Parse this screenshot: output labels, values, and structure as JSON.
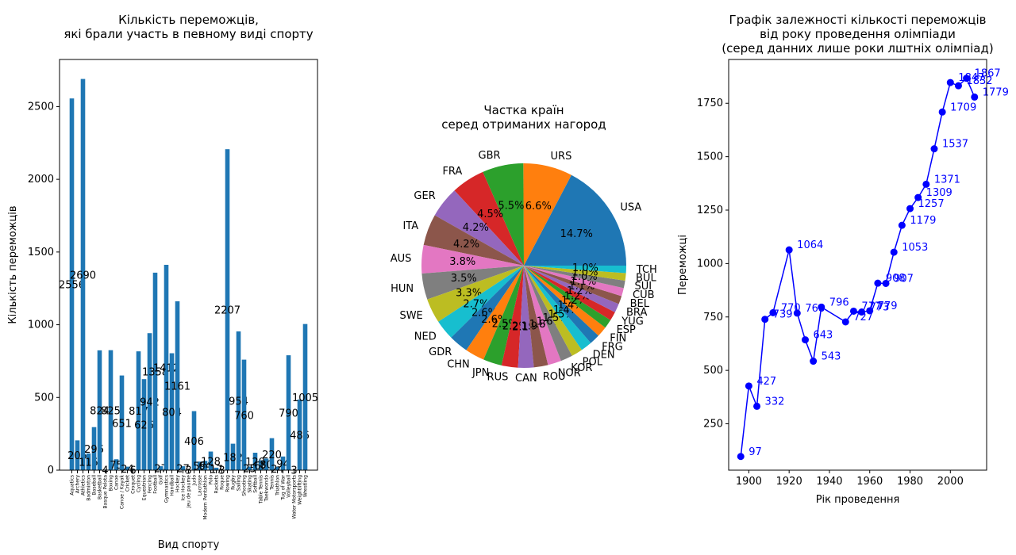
{
  "chart_data": [
    {
      "type": "bar",
      "title": "Кількість переможців,\nякі брали участь в певному виді спорту",
      "x_label": "Вид спорту",
      "y_label": "Кількість переможців",
      "color": "#1f77b4",
      "categories": [
        "Aquatics",
        "Archery",
        "Athletics",
        "Badminton",
        "Baseball",
        "Basketball",
        "Basque Pelota",
        "Boxing",
        "Canoe",
        "Canoe / Kayak",
        "Cricket",
        "Croquet",
        "Cycling",
        "Equestrian",
        "Fencing",
        "Football",
        "Golf",
        "Gymnastics",
        "Handball",
        "Hockey",
        "Ice Hockey",
        "Jeu de paume",
        "Judo",
        "Lacrosse",
        "Modern Pentathlon",
        "Polo",
        "Rackets",
        "Roque",
        "Rowing",
        "Rugby",
        "Sailing",
        "Shooting",
        "Skating",
        "Softball",
        "Table Tennis",
        "Taekwondo",
        "Tennis",
        "Triathlon",
        "Tug of War",
        "Volleyball",
        "Water Motorsports",
        "Weightlifting",
        "Wrestling"
      ],
      "values": [
        2556,
        205,
        2690,
        115,
        296,
        824,
        4,
        825,
        75,
        651,
        24,
        6,
        817,
        626,
        942,
        1358,
        27,
        1412,
        804,
        1161,
        27,
        3,
        406,
        59,
        64,
        128,
        17,
        3,
        2207,
        182,
        954,
        760,
        25,
        120,
        68,
        80,
        220,
        24,
        94,
        790,
        3,
        486,
        1005
      ],
      "ylim": [
        0,
        2824
      ],
      "yticks": [
        0,
        500,
        1000,
        1500,
        2000,
        2500
      ]
    },
    {
      "type": "pie",
      "title": "Частка країн\nсеред отриманих нагород",
      "colors": [
        "#1f77b4",
        "#ff7f0e",
        "#2ca02c",
        "#d62728",
        "#9467bd",
        "#8c564b",
        "#e377c2",
        "#7f7f7f",
        "#bcbd22",
        "#17becf"
      ],
      "categories": [
        "USA",
        "URS",
        "GBR",
        "FRA",
        "GER",
        "ITA",
        "AUS",
        "HUN",
        "SWE",
        "NED",
        "GDR",
        "CHN",
        "JPN",
        "RUS",
        "CAN",
        "ROU",
        "NOR",
        "KOR",
        "POL",
        "DEN",
        "FRG",
        "FIN",
        "ESP",
        "YUG",
        "BRA",
        "BEL",
        "CUB",
        "SUI",
        "BUL",
        "TCH"
      ],
      "values": [
        14.7,
        6.6,
        5.5,
        4.5,
        4.2,
        4.2,
        3.8,
        3.5,
        3.3,
        2.7,
        2.6,
        2.6,
        2.5,
        2.2,
        2.1,
        1.9,
        1.8,
        1.6,
        1.5,
        1.5,
        1.4,
        1.4,
        1.2,
        1.2,
        1.2,
        1.1,
        1.1,
        1.0,
        1.0,
        1.0
      ],
      "value_labels": [
        "14.7%",
        "6.6%",
        "5.5%",
        "4.5%",
        "4.2%",
        "4.2%",
        "3.8%",
        "3.5%",
        "3.3%",
        "2.7%",
        "2.6%",
        "2.6%",
        "2.5%",
        "2.2%",
        "2.1%",
        "1.9%",
        "1.8%",
        "1.6%",
        "1.5%",
        "1.5%",
        "1.4%",
        "1.4%",
        "1.2%",
        "1.2%",
        "1.2%",
        "1.1%",
        "1.1%",
        "1.0%",
        "1.0%",
        "1.0%"
      ]
    },
    {
      "type": "line",
      "title": "Графік залежності кількості переможців\nвід року проведення олімпіади\n(серед данних лише роки лштніх олімпіад)",
      "x_label": "Рік проведення",
      "y_label": "Переможці",
      "color": "#0000ff",
      "x": [
        1896,
        1900,
        1904,
        1908,
        1912,
        1920,
        1924,
        1928,
        1932,
        1936,
        1948,
        1952,
        1956,
        1960,
        1964,
        1968,
        1972,
        1976,
        1980,
        1984,
        1988,
        1992,
        1996,
        2000,
        2004,
        2008,
        2012
      ],
      "values": [
        97,
        427,
        332,
        739,
        770,
        1064,
        768,
        643,
        543,
        796,
        727,
        777,
        773,
        779,
        908,
        907,
        1053,
        1179,
        1257,
        1309,
        1371,
        1537,
        1709,
        1847,
        1832,
        1867,
        1779
      ],
      "xlim": [
        1890,
        2018
      ],
      "xticks": [
        1900,
        1920,
        1940,
        1960,
        1980,
        2000
      ],
      "ylim": [
        33,
        1955
      ],
      "yticks": [
        250,
        500,
        750,
        1000,
        1250,
        1500,
        1750
      ]
    }
  ]
}
